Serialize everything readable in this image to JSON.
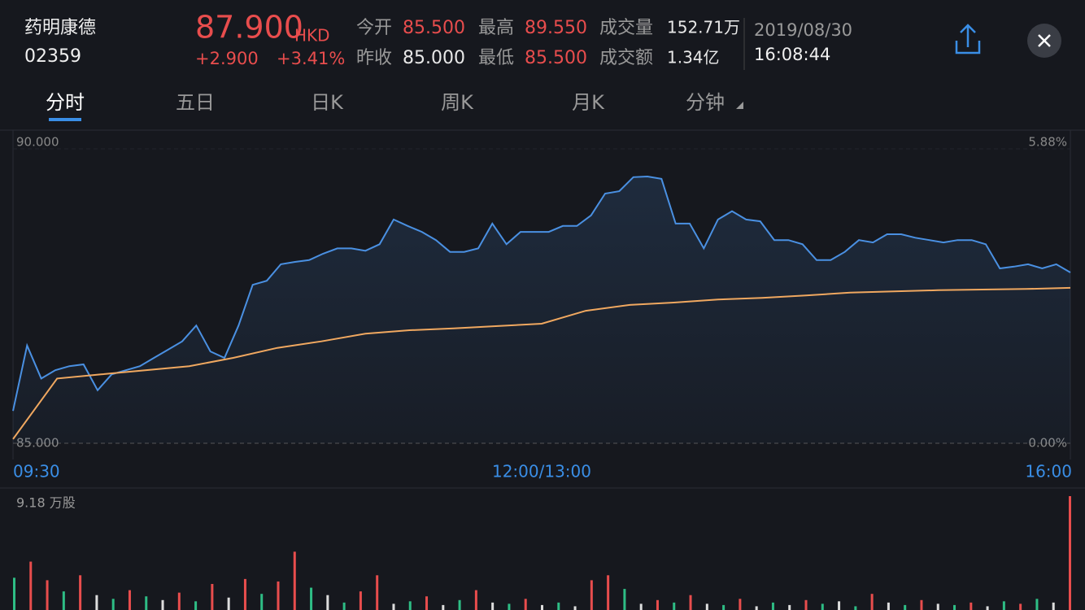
{
  "header": {
    "name": "药明康德",
    "code": "02359",
    "price": "87.900",
    "currency": "HKD",
    "change": "+2.900",
    "change_pct": "+3.41%",
    "stats": [
      {
        "label": "今开",
        "value": "85.500",
        "color": "#e84d4d"
      },
      {
        "label": "昨收",
        "value": "85.000",
        "color": "#e8e8e8"
      },
      {
        "label": "最高",
        "value": "89.550",
        "color": "#e84d4d"
      },
      {
        "label": "最低",
        "value": "85.500",
        "color": "#e84d4d"
      },
      {
        "label": "成交量",
        "value": "152.71万",
        "color": "#e8e8e8"
      },
      {
        "label": "成交额",
        "value": "1.34亿",
        "color": "#e8e8e8"
      }
    ],
    "date": "2019/08/30",
    "time": "16:08:44"
  },
  "tabs": [
    "分时",
    "五日",
    "日K",
    "周K",
    "月K",
    "分钟"
  ],
  "chart_data": {
    "type": "line",
    "series": [
      {
        "color": "#4a90e2",
        "values": [
          85.55,
          86.66,
          86.1,
          86.24,
          86.31,
          86.34,
          85.9,
          86.17,
          86.24,
          86.31,
          86.45,
          86.59,
          86.73,
          87.0,
          86.56,
          86.45,
          87.0,
          87.69,
          87.76,
          88.04,
          88.08,
          88.11,
          88.22,
          88.31,
          88.31,
          88.27,
          88.38,
          88.8,
          88.69,
          88.59,
          88.45,
          88.25,
          88.25,
          88.31,
          88.73,
          88.38,
          88.59,
          88.59,
          88.59,
          88.69,
          88.69,
          88.87,
          89.24,
          89.28,
          89.52,
          89.53,
          89.49,
          88.73,
          88.73,
          88.31,
          88.8,
          88.94,
          88.8,
          88.77,
          88.45,
          88.45,
          88.38,
          88.11,
          88.11,
          88.25,
          88.45,
          88.41,
          88.55,
          88.55,
          88.49,
          88.45,
          88.41,
          88.45,
          88.45,
          88.38,
          87.97,
          88.0,
          88.04,
          87.97,
          88.04,
          87.9
        ]
      },
      {
        "color": "#f0a860",
        "values": [
          85.07,
          86.1,
          86.17,
          86.24,
          86.31,
          86.45,
          86.62,
          86.73,
          86.86,
          86.92,
          86.95,
          86.99,
          87.03,
          87.25,
          87.35,
          87.39,
          87.44,
          87.47,
          87.51,
          87.56,
          87.58,
          87.6,
          87.61,
          87.62,
          87.64
        ]
      }
    ],
    "ylim": [
      85,
      90
    ],
    "yticks": [
      {
        "value": 85,
        "label": "85.000"
      },
      {
        "value": 90,
        "label": "90.000"
      }
    ],
    "y2lim": [
      0,
      5.88
    ],
    "y2ticks": [
      {
        "value": 0,
        "label": "0.00%"
      },
      {
        "value": 5.88,
        "label": "5.88%"
      }
    ],
    "x_labels": [
      "09:30",
      "12:00/13:00",
      "16:00"
    ]
  },
  "volume": {
    "type": "bar",
    "ylim": [
      0,
      9.18
    ],
    "yticks": [
      {
        "value": 9.18,
        "label": "9.18 万股"
      }
    ],
    "values": [
      2.6,
      3.9,
      2.4,
      1.5,
      2.8,
      1.2,
      0.9,
      1.6,
      1.1,
      0.8,
      1.4,
      0.7,
      2.1,
      1.0,
      2.5,
      1.3,
      2.3,
      4.7,
      1.8,
      1.2,
      0.6,
      1.5,
      2.8,
      0.5,
      0.7,
      1.1,
      0.4,
      0.8,
      1.6,
      0.6,
      0.5,
      0.9,
      0.4,
      0.6,
      0.3,
      2.4,
      2.8,
      1.7,
      0.5,
      0.8,
      0.6,
      1.2,
      0.5,
      0.4,
      0.9,
      0.3,
      0.6,
      0.4,
      0.8,
      0.5,
      0.7,
      0.3,
      1.3,
      0.6,
      0.4,
      0.8,
      0.5,
      0.4,
      0.6,
      0.3,
      0.7,
      0.5,
      0.9,
      0.6,
      9.18
    ],
    "colors": [
      "#2ebd85",
      "#e84d4d",
      "#e84d4d",
      "#2ebd85",
      "#e84d4d",
      "#ddd",
      "#2ebd85",
      "#e84d4d",
      "#2ebd85",
      "#ddd",
      "#e84d4d",
      "#2ebd85",
      "#e84d4d",
      "#ddd",
      "#e84d4d",
      "#2ebd85",
      "#e84d4d",
      "#e84d4d",
      "#2ebd85",
      "#ddd",
      "#2ebd85",
      "#e84d4d",
      "#e84d4d",
      "#ddd",
      "#2ebd85",
      "#e84d4d",
      "#ddd",
      "#2ebd85",
      "#e84d4d",
      "#ddd",
      "#2ebd85",
      "#e84d4d",
      "#ddd",
      "#2ebd85",
      "#ddd",
      "#e84d4d",
      "#e84d4d",
      "#2ebd85",
      "#ddd",
      "#e84d4d",
      "#2ebd85",
      "#e84d4d",
      "#ddd",
      "#2ebd85",
      "#e84d4d",
      "#ddd",
      "#2ebd85",
      "#ddd",
      "#e84d4d",
      "#2ebd85",
      "#ddd",
      "#2ebd85",
      "#e84d4d",
      "#ddd",
      "#2ebd85",
      "#e84d4d",
      "#ddd",
      "#2ebd85",
      "#e84d4d",
      "#ddd",
      "#2ebd85",
      "#e84d4d",
      "#2ebd85",
      "#ddd",
      "#e84d4d"
    ]
  }
}
